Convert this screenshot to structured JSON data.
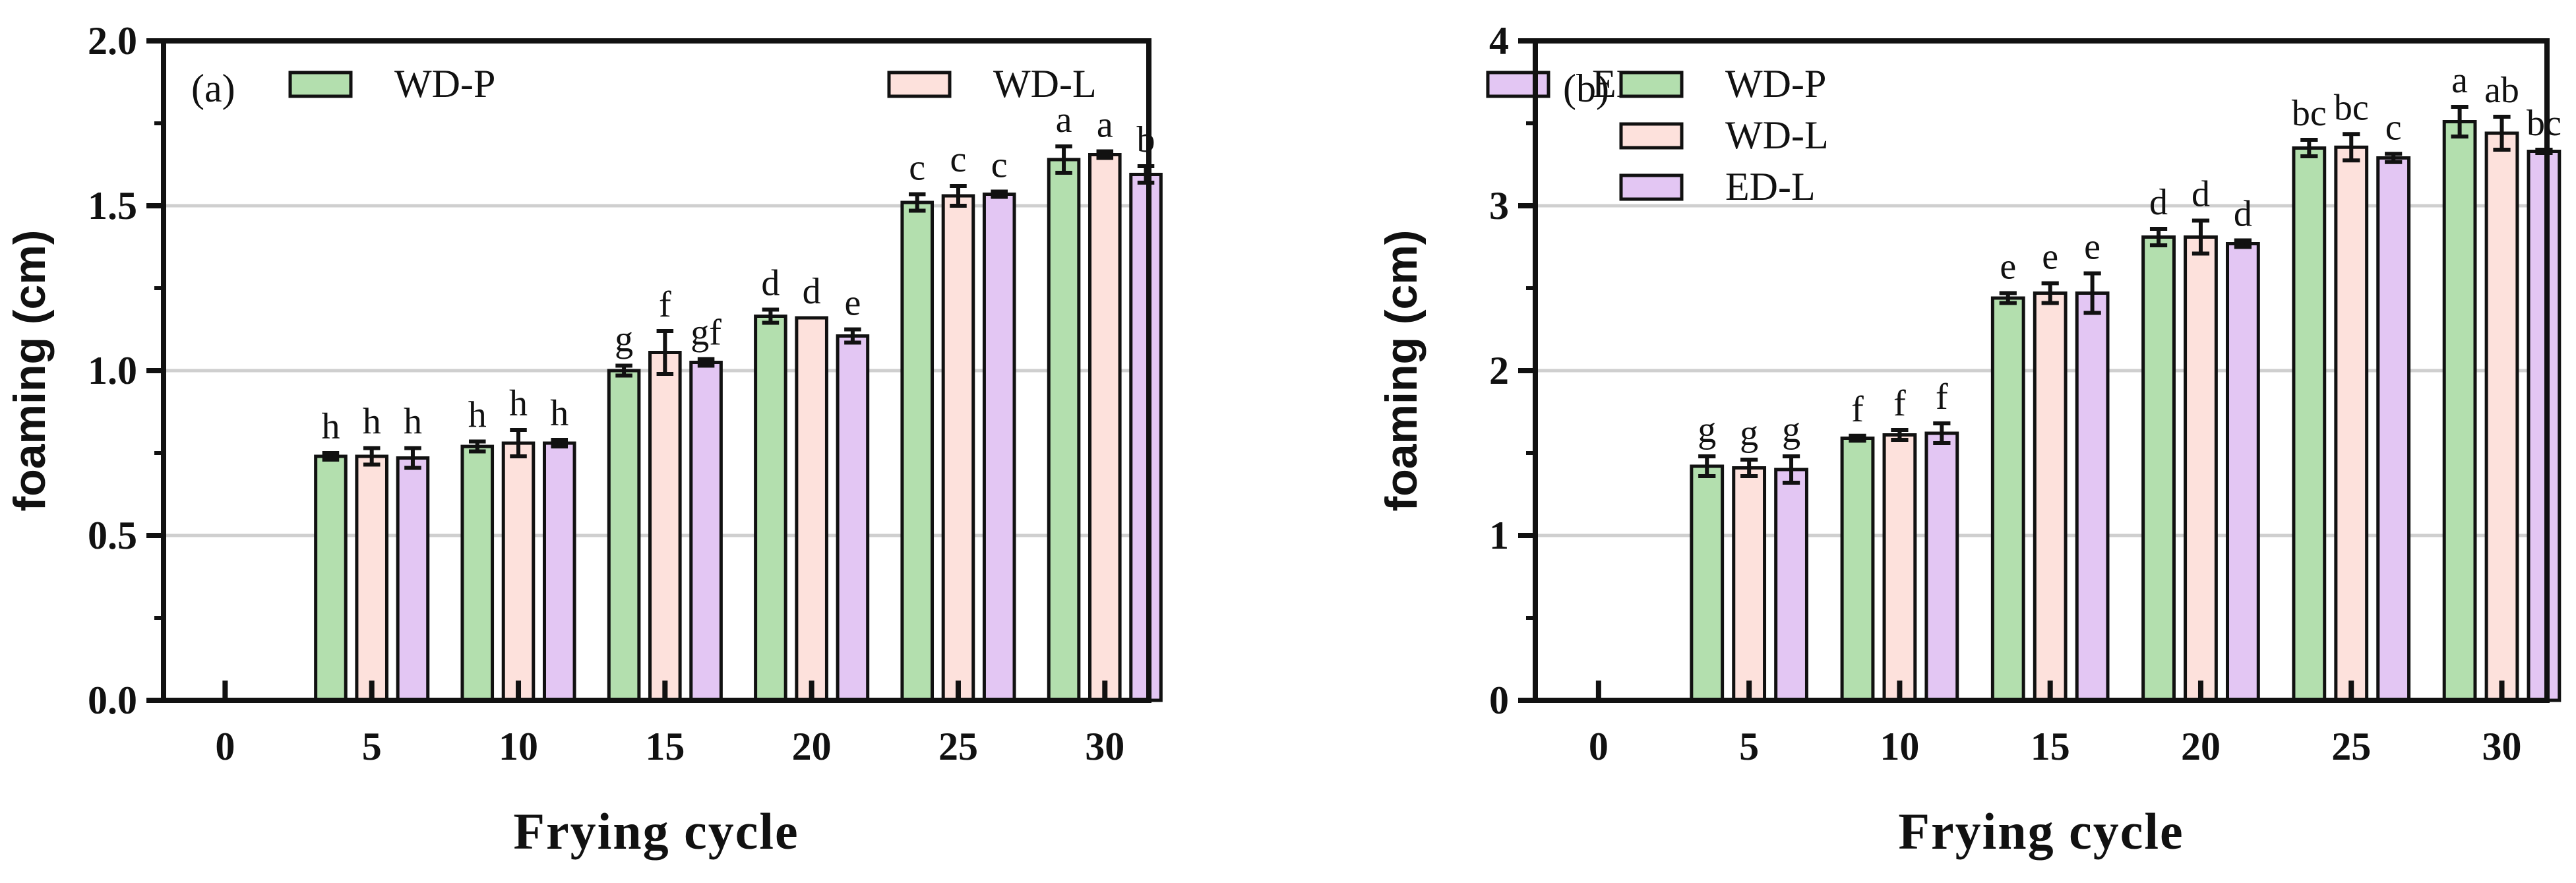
{
  "colors": {
    "WD-P": "#b3dfae",
    "WD-L": "#fde1dc",
    "ED-L": "#e3c6f3",
    "grid": "#cfcfcf",
    "axis": "#111111"
  },
  "chart_data": [
    {
      "type": "bar",
      "panel_label": "(a)",
      "xlabel": "Frying cycle",
      "ylabel": "foaming (cm)",
      "ylim": [
        0,
        2.0
      ],
      "yticks": [
        "0.0",
        "0.5",
        "1.0",
        "1.5",
        "2.0"
      ],
      "ytick_values": [
        0,
        0.5,
        1.0,
        1.5,
        2.0
      ],
      "grid": true,
      "legend": {
        "placement": "top",
        "orientation": "horizontal",
        "labels": [
          "WD-P",
          "WD-L",
          "ED-L"
        ]
      },
      "categories": [
        "0",
        "5",
        "10",
        "15",
        "20",
        "25",
        "30"
      ],
      "series": [
        {
          "name": "WD-P",
          "values": [
            0,
            0.74,
            0.77,
            1.0,
            1.165,
            1.51,
            1.64
          ],
          "errors": [
            0,
            0.01,
            0.015,
            0.015,
            0.02,
            0.025,
            0.04
          ],
          "labels": [
            "",
            "h",
            "h",
            "g",
            "d",
            "c",
            "a"
          ]
        },
        {
          "name": "WD-L",
          "values": [
            0,
            0.74,
            0.78,
            1.055,
            1.16,
            1.53,
            1.655
          ],
          "errors": [
            0,
            0.025,
            0.04,
            0.065,
            0,
            0.03,
            0.01
          ],
          "labels": [
            "",
            "h",
            "h",
            "f",
            "d",
            "c",
            "a"
          ]
        },
        {
          "name": "ED-L",
          "values": [
            0,
            0.735,
            0.78,
            1.025,
            1.105,
            1.535,
            1.595
          ],
          "errors": [
            0,
            0.03,
            0.01,
            0.01,
            0.02,
            0.008,
            0.025
          ],
          "labels": [
            "",
            "h",
            "h",
            "gf",
            "e",
            "c",
            "b"
          ]
        }
      ]
    },
    {
      "type": "bar",
      "panel_label": "(b)",
      "xlabel": "Frying cycle",
      "ylabel": "foaming (cm)",
      "ylim": [
        0,
        4
      ],
      "yticks": [
        "0",
        "1",
        "2",
        "3",
        "4"
      ],
      "ytick_values": [
        0,
        1,
        2,
        3,
        4
      ],
      "grid": true,
      "legend": {
        "placement": "top-left",
        "orientation": "vertical",
        "labels": [
          "WD-P",
          "WD-L",
          "ED-L"
        ]
      },
      "categories": [
        "0",
        "5",
        "10",
        "15",
        "20",
        "25",
        "30"
      ],
      "series": [
        {
          "name": "WD-P",
          "values": [
            0,
            1.42,
            1.59,
            2.44,
            2.81,
            3.35,
            3.51
          ],
          "errors": [
            0,
            0.06,
            0.015,
            0.03,
            0.05,
            0.05,
            0.09
          ],
          "labels": [
            "",
            "g",
            "f",
            "e",
            "d",
            "bc",
            "a"
          ]
        },
        {
          "name": "WD-L",
          "values": [
            0,
            1.41,
            1.61,
            2.47,
            2.81,
            3.355,
            3.44
          ],
          "errors": [
            0,
            0.05,
            0.03,
            0.06,
            0.1,
            0.08,
            0.1
          ],
          "labels": [
            "",
            "g",
            "f",
            "e",
            "d",
            "bc",
            "ab"
          ]
        },
        {
          "name": "ED-L",
          "values": [
            0,
            1.4,
            1.62,
            2.47,
            2.77,
            3.29,
            3.33
          ],
          "errors": [
            0,
            0.08,
            0.06,
            0.12,
            0.02,
            0.025,
            0.01
          ],
          "labels": [
            "",
            "g",
            "f",
            "e",
            "d",
            "c",
            "bc"
          ]
        }
      ]
    }
  ]
}
